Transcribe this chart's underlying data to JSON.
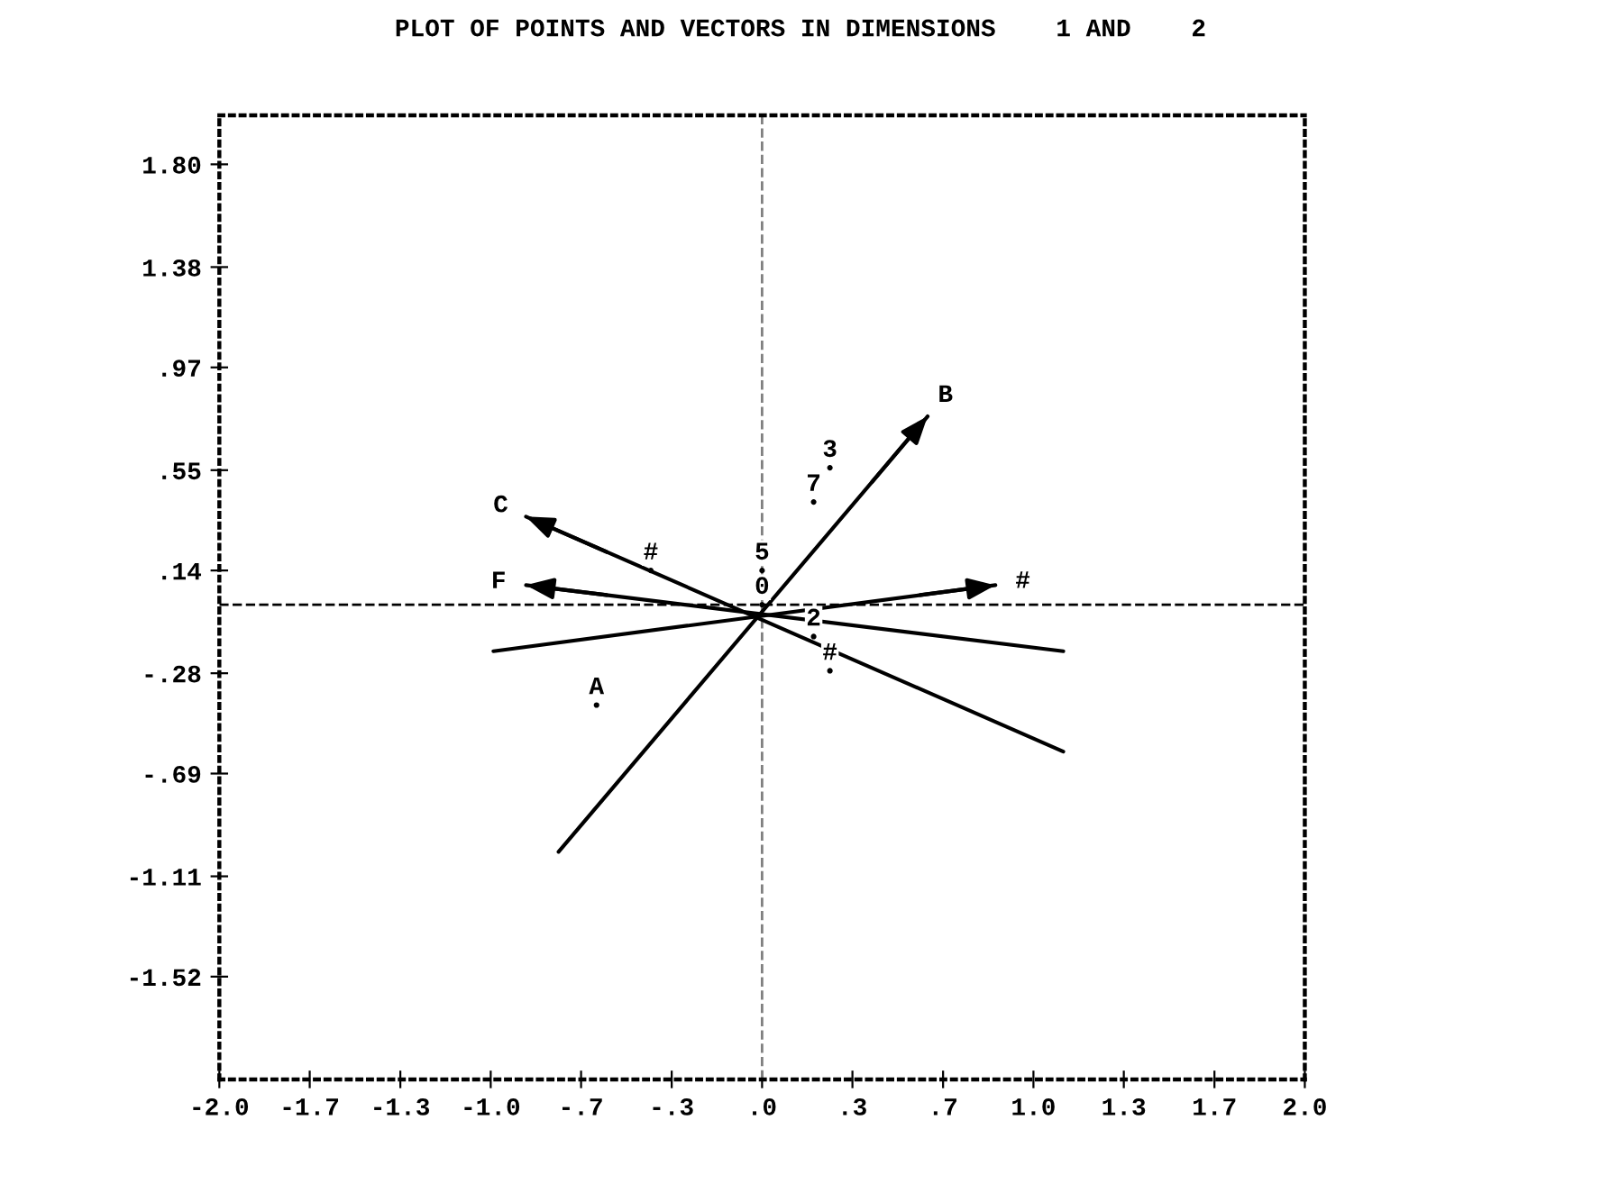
{
  "chart_data": {
    "type": "scatter",
    "title": "PLOT OF POINTS AND VECTORS IN DIMENSIONS    1 AND    2",
    "xlim": [
      -2.0,
      2.0
    ],
    "ylim": [
      -1.94,
      2.0
    ],
    "xticks": [
      {
        "value": -2.0,
        "label": "-2.0"
      },
      {
        "value": -1.667,
        "label": "-1.7"
      },
      {
        "value": -1.333,
        "label": "-1.3"
      },
      {
        "value": -1.0,
        "label": "-1.0"
      },
      {
        "value": -0.667,
        "label": "-.7"
      },
      {
        "value": -0.333,
        "label": "-.3"
      },
      {
        "value": 0,
        "label": ".0"
      },
      {
        "value": 0.333,
        "label": ".3"
      },
      {
        "value": 0.667,
        "label": ".7"
      },
      {
        "value": 1.0,
        "label": "1.0"
      },
      {
        "value": 1.333,
        "label": "1.3"
      },
      {
        "value": 1.667,
        "label": "1.7"
      },
      {
        "value": 2.0,
        "label": "2.0"
      }
    ],
    "yticks": [
      {
        "value": 1.8,
        "label": "1.80"
      },
      {
        "value": 1.38,
        "label": "1.38"
      },
      {
        "value": 0.97,
        "label": ".97"
      },
      {
        "value": 0.55,
        "label": ".55"
      },
      {
        "value": 0.14,
        "label": ".14"
      },
      {
        "value": -0.28,
        "label": "-.28"
      },
      {
        "value": -0.69,
        "label": "-.69"
      },
      {
        "value": -1.11,
        "label": "-1.11"
      },
      {
        "value": -1.52,
        "label": "-1.52"
      }
    ],
    "grid": false,
    "ref_lines": [
      {
        "axis": "x",
        "value": 0,
        "line_style": "dashed",
        "color": "#808080"
      },
      {
        "axis": "y",
        "value": 0,
        "line_style": "dashed",
        "color": "#000000"
      }
    ],
    "series": [
      {
        "type": "line",
        "name": "B",
        "color": "#000000",
        "x": [
          -0.75,
          0.61
        ],
        "values": [
          -1.01,
          0.77
        ]
      },
      {
        "type": "line",
        "name": "C",
        "color": "#000000",
        "x": [
          1.11,
          -0.87
        ],
        "values": [
          -0.6,
          0.36
        ]
      },
      {
        "type": "line",
        "name": "F",
        "color": "#000000",
        "x": [
          1.11,
          -0.87
        ],
        "values": [
          -0.19,
          0.08
        ]
      },
      {
        "type": "line",
        "name": "#",
        "color": "#000000",
        "x": [
          -0.99,
          0.86
        ],
        "values": [
          -0.19,
          0.08
        ]
      },
      {
        "name": "3",
        "color": "#000000",
        "x": [
          0.25
        ],
        "values": [
          0.56
        ]
      },
      {
        "name": "7",
        "color": "#000000",
        "x": [
          0.19
        ],
        "values": [
          0.42
        ]
      },
      {
        "name": "#",
        "color": "#000000",
        "x": [
          -0.41
        ],
        "values": [
          0.14
        ]
      },
      {
        "name": "5",
        "color": "#000000",
        "x": [
          0.0
        ],
        "values": [
          0.14
        ]
      },
      {
        "name": "0",
        "color": "#000000",
        "x": [
          0.0
        ],
        "values": [
          0.0
        ]
      },
      {
        "name": "2",
        "color": "#000000",
        "x": [
          0.19
        ],
        "values": [
          -0.13
        ]
      },
      {
        "name": "#",
        "color": "#000000",
        "x": [
          0.25
        ],
        "values": [
          -0.27
        ]
      },
      {
        "name": "A",
        "color": "#000000",
        "x": [
          -0.61
        ],
        "values": [
          -0.41
        ]
      }
    ]
  }
}
